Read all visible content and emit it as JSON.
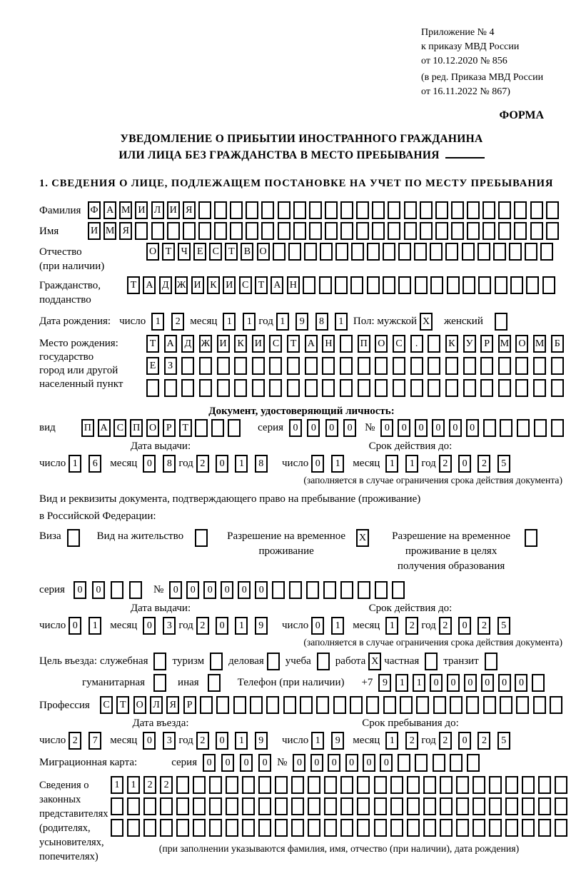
{
  "header": {
    "line1": "Приложение № 4",
    "line2": "к приказу МВД России",
    "line3": "от 10.12.2020 № 856",
    "line4": "(в ред. Приказа МВД России",
    "line5": "от 16.11.2022 № 867)",
    "forma": "ФОРМА"
  },
  "title": {
    "line1": "УВЕДОМЛЕНИЕ О ПРИБЫТИИ ИНОСТРАННОГО ГРАЖДАНИНА",
    "line2": "ИЛИ ЛИЦА БЕЗ ГРАЖДАНСТВА В МЕСТО ПРЕБЫВАНИЯ"
  },
  "section1_heading": "1. СВЕДЕНИЯ О ЛИЦЕ, ПОДЛЕЖАЩЕМ ПОСТАНОВКЕ НА УЧЕТ ПО МЕСТУ ПРЕБЫВАНИЯ",
  "labels": {
    "day": "число",
    "month": "месяц",
    "year": "год",
    "seriya": "серия",
    "nomer": "№"
  },
  "surname": {
    "label": "Фамилия",
    "cells": {
      "value": "ФАМИЛИЯ",
      "total": 30
    }
  },
  "firstname": {
    "label": "Имя",
    "cells": {
      "value": "ИМЯ",
      "total": 30
    }
  },
  "patronymic": {
    "label": "Отчество",
    "label2": "(при наличии)",
    "cells": {
      "value": "ОТЧЕСТВО",
      "total": 26
    }
  },
  "citizenship": {
    "label": "Гражданство,",
    "label2": "подданство",
    "cells": {
      "value": "ТАДЖИКИСТАН",
      "total": 27
    }
  },
  "birth_date": {
    "label": "Дата рождения:",
    "day": {
      "value": "12",
      "total": 2
    },
    "month": {
      "value": "11",
      "total": 2
    },
    "year": {
      "value": "1981",
      "total": 4
    },
    "sex_label": "Пол: мужской",
    "male_checked": "X",
    "female_label": "женский",
    "female_checked": ""
  },
  "birth_place": {
    "label": "Место рождения:",
    "label2": "государство",
    "label3": "город или другой",
    "label4": "населенный пункт",
    "row1": {
      "value": "ТАДЖИКИСТАН ПОС. КУРМОМБ",
      "total": 24
    },
    "row2": {
      "value": "ЕЗ",
      "total": 24
    },
    "row3": {
      "value": "",
      "total": 24
    }
  },
  "identity_doc": {
    "heading": "Документ, удостоверяющий личность:",
    "vid_label": "вид",
    "vid": {
      "value": "ПАСПОРТ",
      "total": 10
    },
    "seriya": {
      "value": "0000",
      "total": 4
    },
    "nomer": {
      "value": "000000",
      "total": 11
    },
    "issue_header": "Дата выдачи:",
    "valid_header": "Срок действия до:",
    "issue": {
      "day": {
        "value": "16",
        "total": 2
      },
      "month": {
        "value": "08",
        "total": 2
      },
      "year": {
        "value": "2018",
        "total": 4
      }
    },
    "valid": {
      "day": {
        "value": "01",
        "total": 2
      },
      "month": {
        "value": "11",
        "total": 2
      },
      "year": {
        "value": "2025",
        "total": 4
      }
    },
    "note": "(заполняется в случае ограничения срока действия документа)"
  },
  "residence_doc": {
    "intro1": "Вид и реквизиты документа, подтверждающего право на пребывание (проживание)",
    "intro2": "в Российской Федерации:",
    "opt1": {
      "label": "Виза",
      "checked": ""
    },
    "opt2": {
      "label": "Вид на жительство",
      "checked": ""
    },
    "opt3": {
      "label": "Разрешение на временное проживание",
      "checked": "X"
    },
    "opt4": {
      "label": "Разрешение на временное проживание в целях получения образования",
      "checked": ""
    },
    "seriya": {
      "value": "00",
      "total": 4
    },
    "nomer": {
      "value": "000000",
      "total": 14
    },
    "issue_header": "Дата выдачи:",
    "valid_header": "Срок действия до:",
    "issue": {
      "day": {
        "value": "01",
        "total": 2
      },
      "month": {
        "value": "03",
        "total": 2
      },
      "year": {
        "value": "2019",
        "total": 4
      }
    },
    "valid": {
      "day": {
        "value": "01",
        "total": 2
      },
      "month": {
        "value": "12",
        "total": 2
      },
      "year": {
        "value": "2025",
        "total": 4
      }
    },
    "note": "(заполняется в случае ограничения срока действия документа)"
  },
  "purpose": {
    "label": "Цель въезда:",
    "opts": [
      {
        "label": "служебная",
        "checked": ""
      },
      {
        "label": "туризм",
        "checked": ""
      },
      {
        "label": "деловая",
        "checked": ""
      },
      {
        "label": "учеба",
        "checked": ""
      },
      {
        "label": "работа",
        "checked": "X"
      },
      {
        "label": "частная",
        "checked": ""
      },
      {
        "label": "транзит",
        "checked": ""
      }
    ],
    "opt_gum": {
      "label": "гуманитарная",
      "checked": ""
    },
    "opt_inaya": {
      "label": "иная",
      "checked": ""
    },
    "phone_label": "Телефон (при наличии)",
    "phone_prefix": "+7",
    "phone": {
      "value": "911000000",
      "total": 10
    }
  },
  "profession": {
    "label": "Профессия",
    "cells": {
      "value": "СТОЛЯР",
      "total": 28
    }
  },
  "entry": {
    "date_header": "Дата въезда:",
    "stay_header": "Срок пребывания до:",
    "date": {
      "day": {
        "value": "27",
        "total": 2
      },
      "month": {
        "value": "03",
        "total": 2
      },
      "year": {
        "value": "2019",
        "total": 4
      }
    },
    "stay": {
      "day": {
        "value": "19",
        "total": 2
      },
      "month": {
        "value": "12",
        "total": 2
      },
      "year": {
        "value": "2025",
        "total": 4
      }
    }
  },
  "migration_card": {
    "label": "Миграционная карта:",
    "seriya": {
      "value": "0000",
      "total": 4
    },
    "nomer": {
      "value": "000000",
      "total": 11
    }
  },
  "legal_reps": {
    "label1": "Сведения о",
    "label2": "законных",
    "label3": "представителях",
    "label4": "(родителях,",
    "label5": "усыновителях,",
    "label6": "попечителях)",
    "row1": {
      "value": "1122",
      "total": 28
    },
    "row2": {
      "value": "",
      "total": 28
    },
    "row3": {
      "value": "",
      "total": 28
    },
    "note": "(при заполнении указываются фамилия, имя, отчество (при наличии), дата рождения)"
  }
}
